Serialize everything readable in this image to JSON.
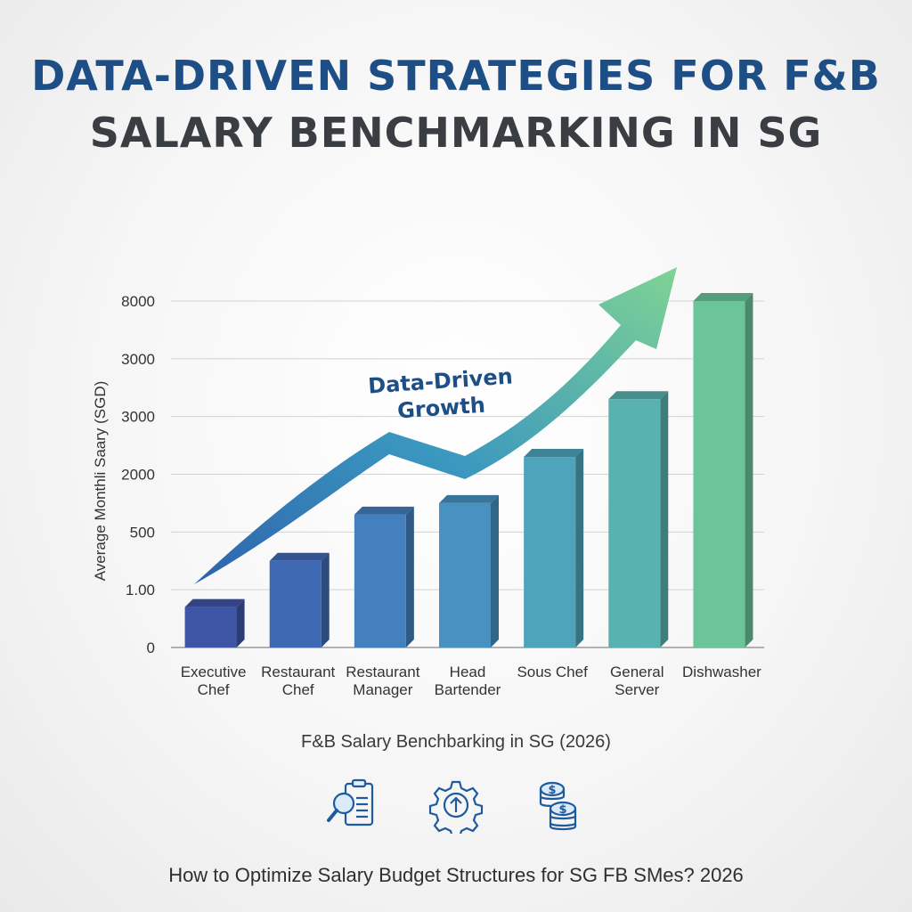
{
  "title": {
    "line1": "DATA-DRIVEN STRATEGIES FOR F&B",
    "line2": "SALARY BENCHMARKING IN SG"
  },
  "chart_data": {
    "type": "bar",
    "ylabel": "Average Monthli Saary (SGD)",
    "yticks": [
      "0",
      "1.00",
      "500",
      "2000",
      "3000",
      "3000",
      "8000"
    ],
    "categories": [
      [
        "Executive",
        "Chef"
      ],
      [
        "Restaurant",
        "Chef"
      ],
      [
        "Restaurant",
        "Manager"
      ],
      [
        "Head",
        "Bartender"
      ],
      [
        "Sous Chef"
      ],
      [
        "General",
        "Server"
      ],
      [
        "Dishwasher"
      ]
    ],
    "values": [
      0.7,
      1.5,
      2.3,
      2.5,
      3.3,
      4.3,
      6.0
    ],
    "value_note_scale": "relative bar heights on the printed tick ladder (tick index units)",
    "ylim": [
      0,
      6
    ],
    "grid": true,
    "annotation": [
      "Data-Driven",
      "Growth"
    ],
    "colors": [
      "#3f55a6",
      "#4069b4",
      "#4480bd",
      "#4792c0",
      "#4da4bb",
      "#58b3b0",
      "#6cc49b"
    ]
  },
  "caption": "F&B Salary Benchbarking in SG (2026)",
  "icons": [
    "search-document-icon",
    "gear-growth-icon",
    "coins-icon"
  ],
  "footer": "How to Optimize Salary Budget Structures for SG FB SMes? 2026"
}
